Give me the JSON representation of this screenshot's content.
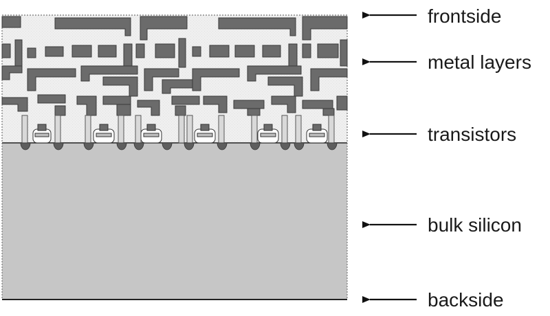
{
  "labels": {
    "frontside": "frontside",
    "metal_layers": "metal layers",
    "transistors": "transistors",
    "bulk_silicon": "bulk silicon",
    "backside": "backside"
  },
  "colors": {
    "metal": "#6b6b6b",
    "metal_outline": "#3a3a3a",
    "dielectric": "#efefef",
    "bulk_silicon": "#c6c6c6",
    "via": "#d9d9d9",
    "arrow": "#111111"
  }
}
